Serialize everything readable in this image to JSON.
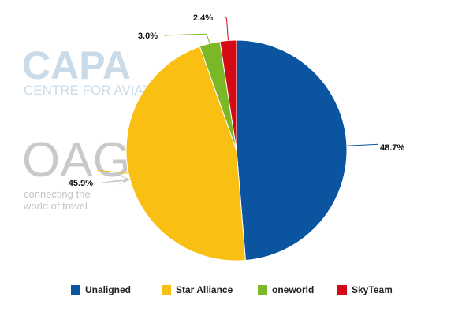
{
  "watermarks": {
    "capa_main": "CAPA",
    "capa_sub": "CENTRE FOR AVIATION",
    "oag_main": "OAG",
    "oag_tag1": "connecting the",
    "oag_tag2": "world of travel"
  },
  "chart_data": {
    "type": "pie",
    "start_angle_deg": 0,
    "direction": "clockwise",
    "slices": [
      {
        "name": "Unaligned",
        "value": 48.7,
        "label": "48.7%",
        "color": "#0a54a0"
      },
      {
        "name": "Star Alliance",
        "value": 45.9,
        "label": "45.9%",
        "color": "#f9bf13"
      },
      {
        "name": "oneworld",
        "value": 3.0,
        "label": "3.0%",
        "color": "#7ab828"
      },
      {
        "name": "SkyTeam",
        "value": 2.4,
        "label": "2.4%",
        "color": "#d40a14"
      }
    ],
    "legend": {
      "position": "bottom"
    }
  }
}
